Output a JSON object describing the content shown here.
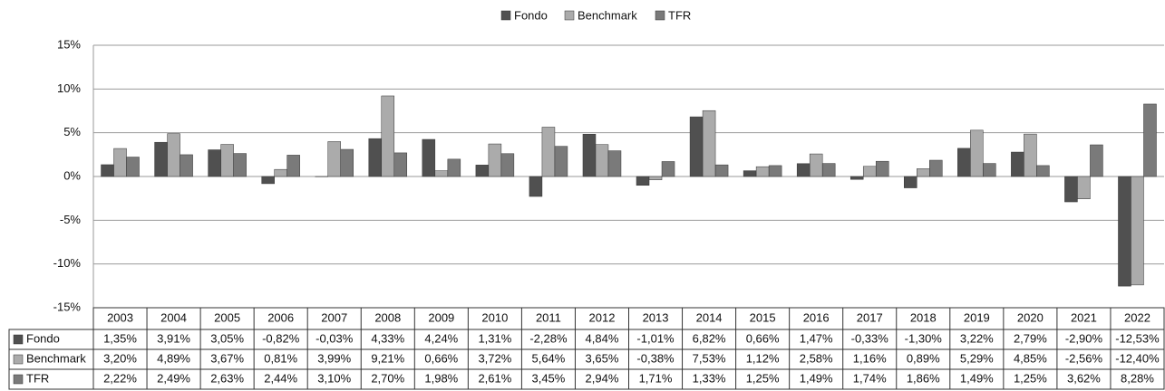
{
  "chart_data": {
    "type": "bar",
    "categories": [
      "2003",
      "2004",
      "2005",
      "2006",
      "2007",
      "2008",
      "2009",
      "2010",
      "2011",
      "2012",
      "2013",
      "2014",
      "2015",
      "2016",
      "2017",
      "2018",
      "2019",
      "2020",
      "2021",
      "2022"
    ],
    "series": [
      {
        "name": "Fondo",
        "color": "#505050",
        "values": [
          1.35,
          3.91,
          3.05,
          -0.82,
          -0.03,
          4.33,
          4.24,
          1.31,
          -2.28,
          4.84,
          -1.01,
          6.82,
          0.66,
          1.47,
          -0.33,
          -1.3,
          3.22,
          2.79,
          -2.9,
          -12.53
        ],
        "value_labels": [
          "1,35%",
          "3,91%",
          "3,05%",
          "-0,82%",
          "-0,03%",
          "4,33%",
          "4,24%",
          "1,31%",
          "-2,28%",
          "4,84%",
          "-1,01%",
          "6,82%",
          "0,66%",
          "1,47%",
          "-0,33%",
          "-1,30%",
          "3,22%",
          "2,79%",
          "-2,90%",
          "-12,53%"
        ]
      },
      {
        "name": "Benchmark",
        "color": "#ababab",
        "values": [
          3.2,
          4.89,
          3.67,
          0.81,
          3.99,
          9.21,
          0.66,
          3.72,
          5.64,
          3.65,
          -0.38,
          7.53,
          1.12,
          2.58,
          1.16,
          0.89,
          5.29,
          4.85,
          -2.56,
          -12.4
        ],
        "value_labels": [
          "3,20%",
          "4,89%",
          "3,67%",
          "0,81%",
          "3,99%",
          "9,21%",
          "0,66%",
          "3,72%",
          "5,64%",
          "3,65%",
          "-0,38%",
          "7,53%",
          "1,12%",
          "2,58%",
          "1,16%",
          "0,89%",
          "5,29%",
          "4,85%",
          "-2,56%",
          "-12,40%"
        ]
      },
      {
        "name": "TFR",
        "color": "#7a7a7a",
        "values": [
          2.22,
          2.49,
          2.63,
          2.44,
          3.1,
          2.7,
          1.98,
          2.61,
          3.45,
          2.94,
          1.71,
          1.33,
          1.25,
          1.49,
          1.74,
          1.86,
          1.49,
          1.25,
          3.62,
          8.28
        ],
        "value_labels": [
          "2,22%",
          "2,49%",
          "2,63%",
          "2,44%",
          "3,10%",
          "2,70%",
          "1,98%",
          "2,61%",
          "3,45%",
          "2,94%",
          "1,71%",
          "1,33%",
          "1,25%",
          "1,49%",
          "1,74%",
          "1,86%",
          "1,49%",
          "1,25%",
          "3,62%",
          "8,28%"
        ]
      }
    ],
    "ylim": [
      -15,
      15
    ],
    "yticks": [
      {
        "value": -15,
        "label": "-15%"
      },
      {
        "value": -10,
        "label": "-10%"
      },
      {
        "value": -5,
        "label": "-5%"
      },
      {
        "value": 0,
        "label": "0%"
      },
      {
        "value": 5,
        "label": "5%"
      },
      {
        "value": 10,
        "label": "10%"
      },
      {
        "value": 15,
        "label": "15%"
      }
    ],
    "grid": true,
    "legend": "top"
  }
}
